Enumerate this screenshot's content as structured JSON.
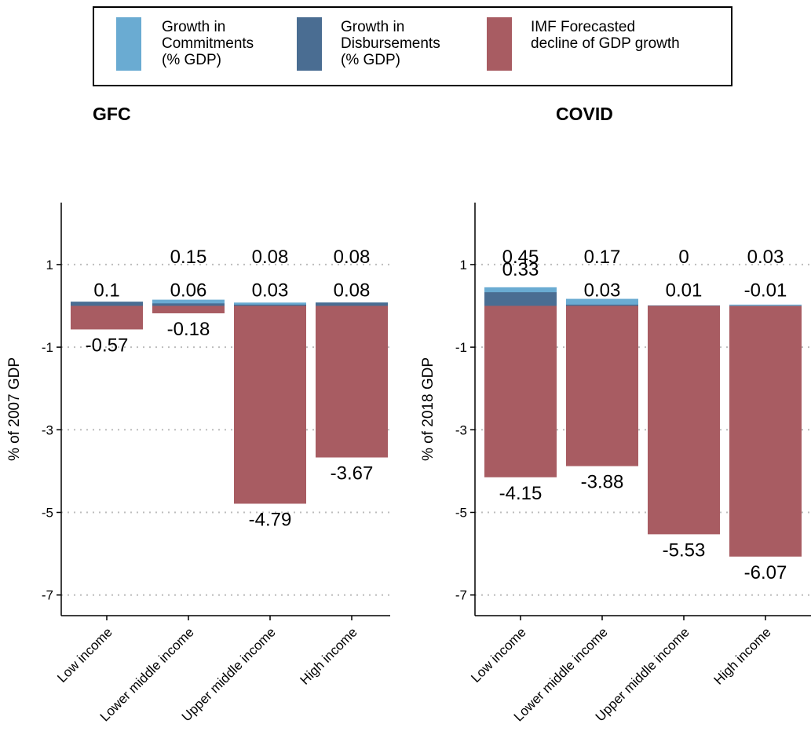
{
  "legend": [
    {
      "label": "Growth in\nCommitments\n(% GDP)",
      "color": "#6aabd2"
    },
    {
      "label": "Growth in\nDisbursements\n(% GDP)",
      "color": "#4a6d92"
    },
    {
      "label": "IMF Forecasted\ndecline of GDP growth",
      "color": "#a85c62"
    }
  ],
  "chart_data": [
    {
      "type": "bar",
      "title": "GFC",
      "ylabel": "% of 2007 GDP",
      "ylim": [
        -7.5,
        2.5
      ],
      "yticks": [
        1,
        -1,
        -3,
        -5,
        -7
      ],
      "categories": [
        "Low income",
        "Lower middle income",
        "Upper middle income",
        "High income"
      ],
      "series": [
        {
          "name": "Growth in Commitments (% GDP)",
          "values": [
            0.1,
            0.15,
            0.08,
            0.08
          ]
        },
        {
          "name": "Growth in Disbursements (% GDP)",
          "values": [
            0.1,
            0.06,
            0.03,
            0.08
          ]
        },
        {
          "name": "IMF Forecasted decline of GDP growth",
          "values": [
            -0.57,
            -0.18,
            -4.79,
            -3.67
          ]
        }
      ],
      "top_labels": [
        "",
        "0.15",
        "0.08",
        "0.08"
      ],
      "mid_labels": [
        "0.1",
        "0.06",
        "0.03",
        "0.08"
      ],
      "neg_labels": [
        "-0.57",
        "-0.18",
        "-4.79",
        "-3.67"
      ],
      "grid": true
    },
    {
      "type": "bar",
      "title": "COVID",
      "ylabel": "% of 2018 GDP",
      "ylim": [
        -7.5,
        2.5
      ],
      "yticks": [
        1,
        -1,
        -3,
        -5,
        -7
      ],
      "categories": [
        "Low income",
        "Lower middle income",
        "Upper middle income",
        "High income"
      ],
      "series": [
        {
          "name": "Growth in Commitments (% GDP)",
          "values": [
            0.45,
            0.17,
            0,
            0.03
          ]
        },
        {
          "name": "Growth in Disbursements (% GDP)",
          "values": [
            0.33,
            0.03,
            0.01,
            -0.01
          ]
        },
        {
          "name": "IMF Forecasted decline of GDP growth",
          "values": [
            -4.15,
            -3.88,
            -5.53,
            -6.07
          ]
        }
      ],
      "top_labels": [
        "0.45",
        "0.17",
        "0",
        "0.03"
      ],
      "mid_labels": [
        "0.33",
        "0.03",
        "0.01",
        "-0.01"
      ],
      "neg_labels": [
        "-4.15",
        "-3.88",
        "-5.53",
        "-6.07"
      ],
      "grid": true
    }
  ]
}
